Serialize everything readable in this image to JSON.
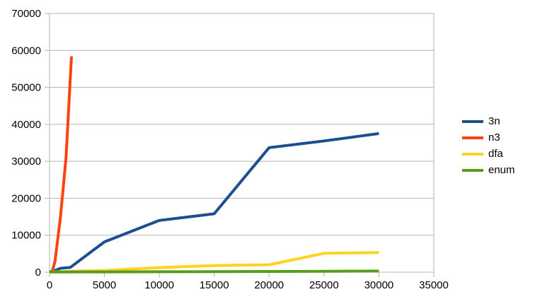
{
  "chart_data": {
    "type": "line",
    "title": "",
    "xlabel": "",
    "ylabel": "",
    "xlim": [
      0,
      35000
    ],
    "ylim": [
      0,
      70000
    ],
    "x_ticks": [
      0,
      5000,
      10000,
      15000,
      20000,
      25000,
      30000,
      35000
    ],
    "y_ticks": [
      0,
      10000,
      20000,
      30000,
      40000,
      50000,
      60000,
      70000
    ],
    "grid": "horizontal-only",
    "legend_position": "right",
    "colors": {
      "gridline": "#b3b3b3",
      "axis": "#b3b3b3",
      "label_text": "#000000",
      "background": "#ffffff"
    },
    "series": [
      {
        "name": "3n",
        "color": "#1B4F8F",
        "points": [
          [
            0,
            100
          ],
          [
            500,
            450
          ],
          [
            1000,
            1050
          ],
          [
            1900,
            1300
          ],
          [
            5000,
            8200
          ],
          [
            10000,
            14000
          ],
          [
            15000,
            15800
          ],
          [
            20000,
            33700
          ],
          [
            25000,
            35500
          ],
          [
            30000,
            37500
          ]
        ]
      },
      {
        "name": "n3",
        "color": "#FF420E",
        "points": [
          [
            250,
            300
          ],
          [
            500,
            3000
          ],
          [
            1000,
            15000
          ],
          [
            1500,
            31000
          ],
          [
            2000,
            58400
          ]
        ]
      },
      {
        "name": "dfa",
        "color": "#FFD320",
        "points": [
          [
            0,
            50
          ],
          [
            2000,
            250
          ],
          [
            5000,
            450
          ],
          [
            10000,
            1250
          ],
          [
            15000,
            1800
          ],
          [
            20000,
            2000
          ],
          [
            25000,
            5100
          ],
          [
            30000,
            5300
          ]
        ]
      },
      {
        "name": "enum",
        "color": "#579D1C",
        "points": [
          [
            0,
            30
          ],
          [
            5000,
            80
          ],
          [
            10000,
            120
          ],
          [
            15000,
            160
          ],
          [
            20000,
            200
          ],
          [
            25000,
            250
          ],
          [
            30000,
            300
          ]
        ]
      }
    ]
  }
}
